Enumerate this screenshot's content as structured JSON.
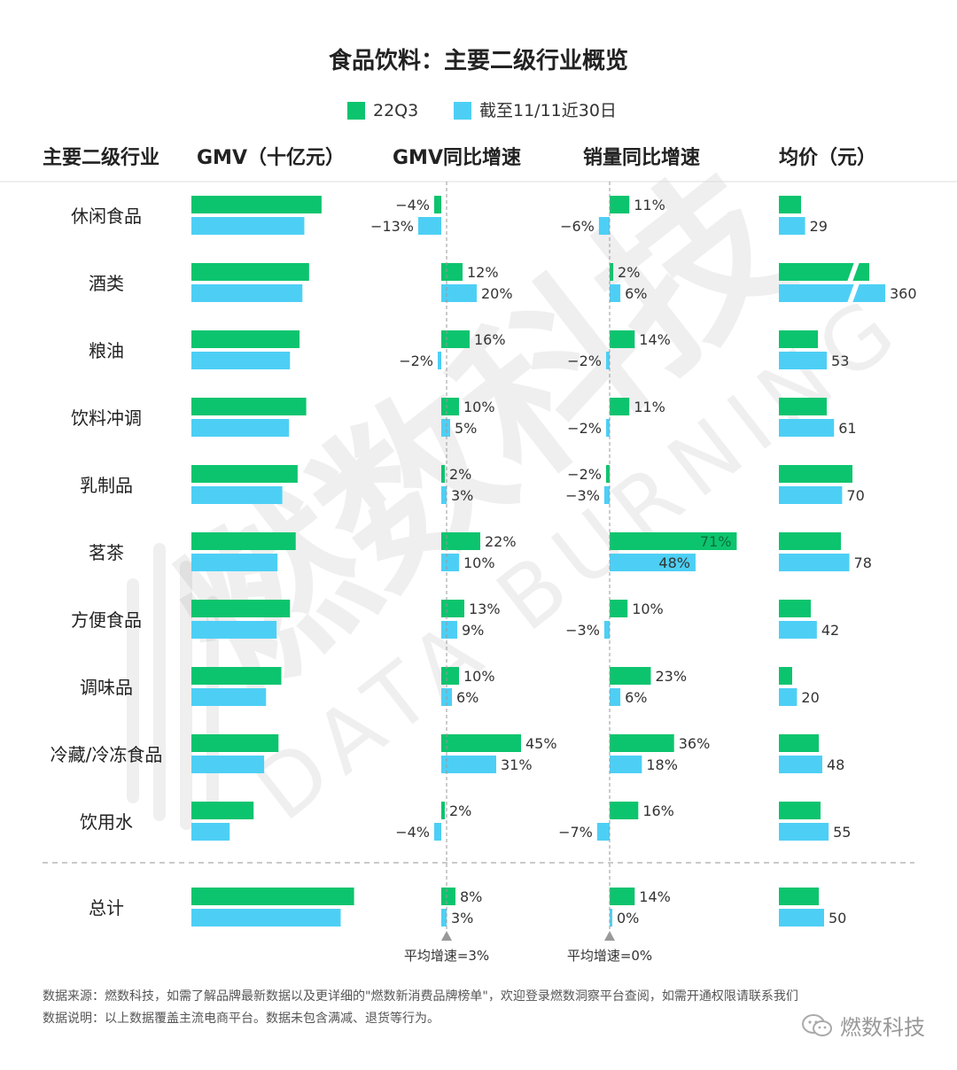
{
  "title": "食品饮料：主要二级行业概览",
  "legend": [
    {
      "label": "22Q3",
      "color": "#0dc46e"
    },
    {
      "label": "截至11/11近30日",
      "color": "#4dcff5"
    }
  ],
  "headers": {
    "category": "主要二级行业",
    "gmv": "GMV（十亿元）",
    "gmv_growth": "GMV同比增速",
    "volume_growth": "销量同比增速",
    "avg_price": "均价（元）"
  },
  "chart_data": {
    "type": "bar",
    "categories": [
      "休闲食品",
      "酒类",
      "粮油",
      "饮料冲调",
      "乳制品",
      "茗茶",
      "方便食品",
      "调味品",
      "冷藏/冷冻食品",
      "饮用水"
    ],
    "total_label": "总计",
    "series_names": [
      "22Q3",
      "截至11/11近30日"
    ],
    "gmv": {
      "q3": [
        13.6,
        12.3,
        11.3,
        12.0,
        11.1,
        10.9,
        10.3,
        9.4,
        9.1,
        6.5
      ],
      "recent": [
        11.8,
        11.6,
        10.3,
        10.2,
        9.5,
        9.0,
        8.9,
        7.8,
        7.6,
        4.0
      ],
      "total": {
        "q3": 17.0,
        "recent": 15.6
      }
    },
    "gmv_growth": {
      "q3": [
        -4,
        12,
        16,
        10,
        2,
        22,
        13,
        10,
        45,
        2
      ],
      "recent": [
        -13,
        20,
        -2,
        5,
        3,
        10,
        9,
        6,
        31,
        -4
      ],
      "total": {
        "q3": 8,
        "recent": 3
      },
      "avg_label": "平均增速=3%"
    },
    "volume_growth": {
      "q3": [
        11,
        2,
        14,
        11,
        -2,
        71,
        10,
        23,
        36,
        16
      ],
      "recent": [
        -6,
        6,
        -2,
        -2,
        -3,
        48,
        -3,
        6,
        18,
        -7
      ],
      "total": {
        "q3": 14,
        "recent": 0
      },
      "avg_label": "平均增速=0%"
    },
    "avg_price": {
      "q3": [
        null,
        null,
        null,
        null,
        null,
        null,
        null,
        null,
        null,
        null
      ],
      "recent": [
        29,
        360,
        53,
        61,
        70,
        78,
        42,
        20,
        48,
        55
      ],
      "total": {
        "q3": null,
        "recent": 50
      }
    }
  },
  "footer": {
    "source": "数据来源：燃数科技，如需了解品牌最新数据以及更详细的\"燃数新消费品牌榜单\"，欢迎登录燃数洞察平台查阅，如需开通权限请联系我们",
    "note": "数据说明：以上数据覆盖主流电商平台。数据未包含满减、退货等行为。"
  },
  "brand": "燃数科技",
  "watermark": {
    "cn": "燃数科技",
    "en": "DATA BURNING"
  }
}
